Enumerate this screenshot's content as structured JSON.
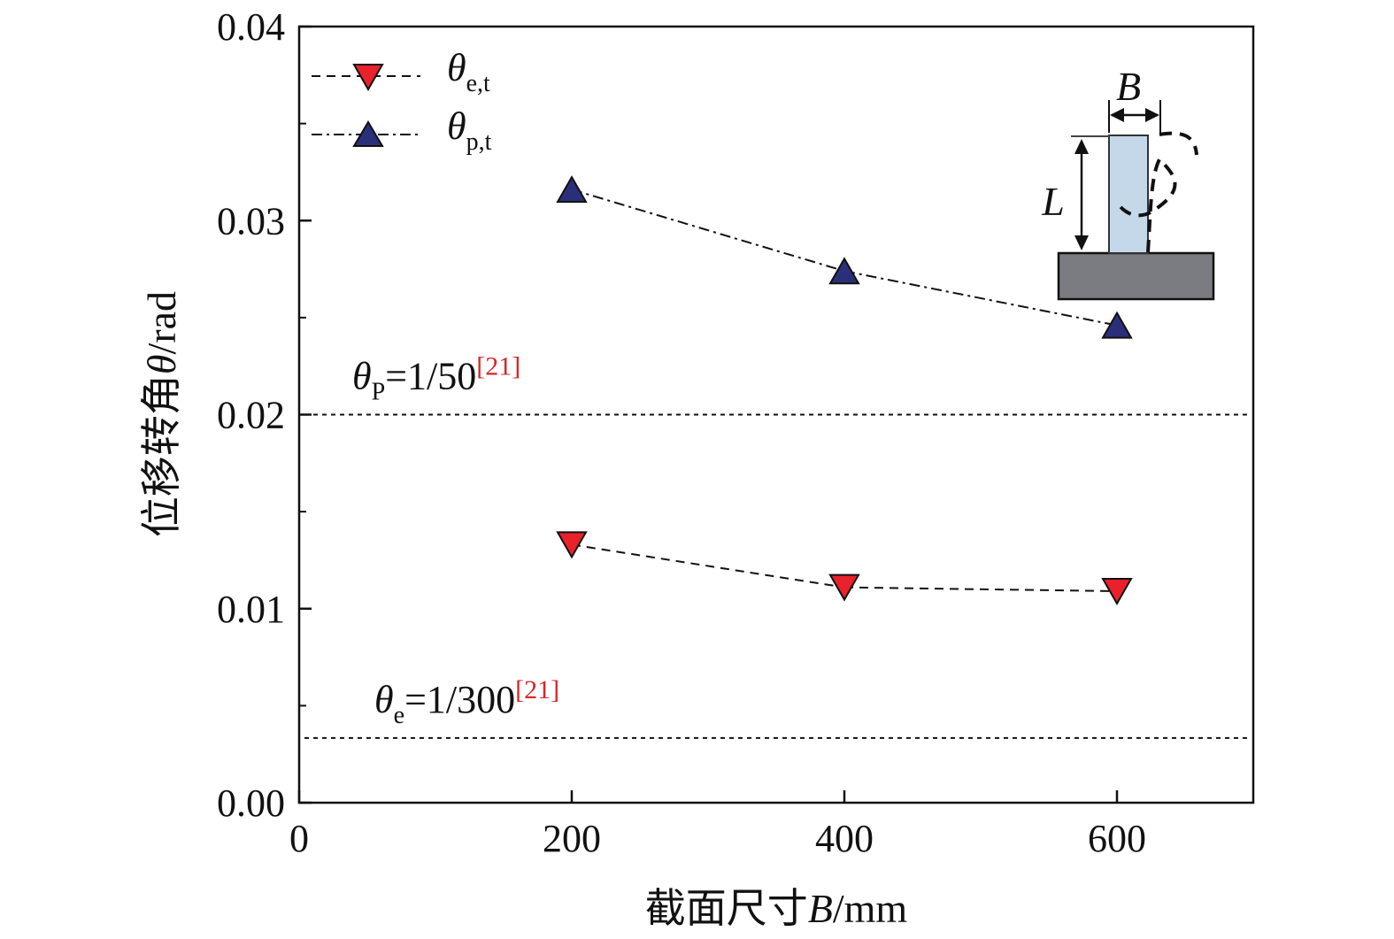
{
  "chart_data": {
    "type": "line",
    "xlabel_prefix": "截面尺寸",
    "xlabel_var": "B",
    "xlabel_unit": "/mm",
    "ylabel_prefix": "位移转角",
    "ylabel_var": "θ",
    "ylabel_unit": "/rad",
    "xlim": [
      0,
      700
    ],
    "ylim": [
      0,
      0.04
    ],
    "x_ticks": [
      0,
      200,
      400,
      600
    ],
    "x_tick_labels": [
      "0",
      "200",
      "400",
      "600"
    ],
    "y_ticks": [
      0,
      0.01,
      0.02,
      0.03,
      0.04
    ],
    "y_tick_labels": [
      "0.00",
      "0.01",
      "0.02",
      "0.03",
      "0.04"
    ],
    "y_minor_ticks": [
      0.005,
      0.015,
      0.025,
      0.035
    ],
    "legend_position": "top-left",
    "series": [
      {
        "name_main": "θ",
        "name_sub": "e,t",
        "marker": "triangle-down",
        "line_style": "dashed",
        "color": "#e8212b",
        "x": [
          200,
          400,
          600
        ],
        "y": [
          0.0133,
          0.0111,
          0.0109
        ]
      },
      {
        "name_main": "θ",
        "name_sub": "p,t",
        "marker": "triangle-up",
        "line_style": "dash-dot",
        "color": "#2b2f7a",
        "x": [
          200,
          400,
          600
        ],
        "y": [
          0.0316,
          0.0274,
          0.0246
        ]
      }
    ],
    "reference_lines": [
      {
        "y": 0.02,
        "label_main": "θ",
        "label_sub": "P",
        "label_value": "=1/50",
        "label_cite": "[21]"
      },
      {
        "y": 0.003333,
        "label_main": "θ",
        "label_sub": "e",
        "label_value": "=1/300",
        "label_cite": "[21]"
      }
    ],
    "inset": {
      "width_label": "B",
      "length_label": "L"
    }
  }
}
